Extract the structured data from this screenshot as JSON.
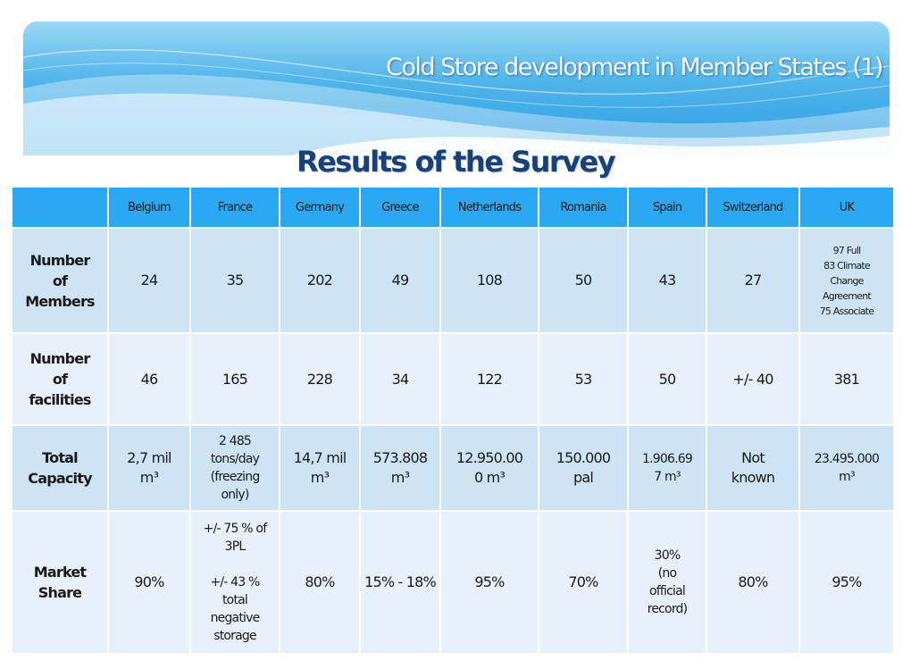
{
  "header": {
    "title": "Cold Store development in Member States (1)",
    "subtitle": "Results of the Survey"
  },
  "colors": {
    "header_blue": "#2aa8f2",
    "row_dark": "#cde4f6",
    "row_light": "#e6f1fb",
    "subtitle": "#17417a"
  },
  "table": {
    "columns": [
      "Belgium",
      "France",
      "Germany",
      "Greece",
      "Netherlands",
      "Romania",
      "Spain",
      "Switzerland",
      "UK"
    ],
    "rows": [
      {
        "label": "Number\nof\nMembers",
        "cells": [
          "24",
          "35",
          "202",
          "49",
          "108",
          "50",
          "43",
          "27",
          "97 Full\n83 Climate\nChange\nAgreement\n75 Associate"
        ]
      },
      {
        "label": "Number\nof\nfacilities",
        "cells": [
          "46",
          "165",
          "228",
          "34",
          "122",
          "53",
          "50",
          "+/- 40",
          "381"
        ]
      },
      {
        "label": "Total\nCapacity",
        "cells": [
          "2,7 mil\nm³",
          "2 485\ntons/day\n(freezing\nonly)",
          "14,7 mil\nm³",
          "573.808\nm³",
          "12.950.00\n0 m³",
          "150.000\npal",
          "1.906.69\n7 m³",
          "Not\nknown",
          "23.495.000\nm³"
        ]
      },
      {
        "label": "Market\nShare",
        "cells": [
          "90%",
          "+/- 75 % of\n3PL\n\n+/- 43 %\ntotal\nnegative\nstorage",
          "80%",
          "15% - 18%",
          "95%",
          "70%",
          "30%\n(no\nofficial\nrecord)",
          "80%",
          "95%"
        ]
      }
    ]
  }
}
